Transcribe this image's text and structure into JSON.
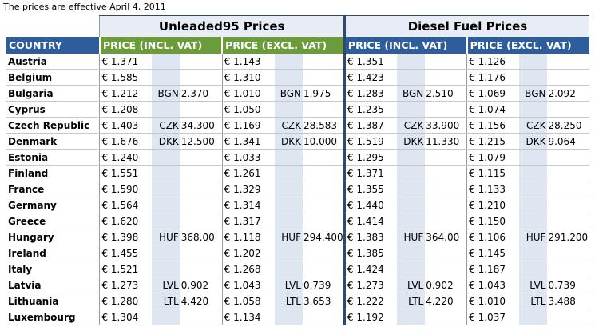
{
  "note": "The prices are effective April 4, 2011",
  "groups": {
    "unleaded": "Unleaded95 Prices",
    "diesel": "Diesel Fuel Prices"
  },
  "headers": {
    "country": "COUNTRY",
    "incl": "PRICE (INCL. VAT)",
    "excl": "PRICE (EXCL. VAT)"
  },
  "colors": {
    "country_header": "#2e5d9c",
    "unleaded_header": "#6c9c3a",
    "diesel_header": "#2e5d9c",
    "local_currency_band": "#dde6f1"
  },
  "rows": [
    {
      "country": "Austria",
      "u_incl": "€ 1.371",
      "u_incl_cur": "",
      "u_incl_loc": "",
      "u_excl": "€ 1.143",
      "u_excl_cur": "",
      "u_excl_loc": "",
      "d_incl": "€ 1.351",
      "d_incl_cur": "",
      "d_incl_loc": "",
      "d_excl": "€ 1.126",
      "d_excl_cur": "",
      "d_excl_loc": ""
    },
    {
      "country": "Belgium",
      "u_incl": "€ 1.585",
      "u_incl_cur": "",
      "u_incl_loc": "",
      "u_excl": "€ 1.310",
      "u_excl_cur": "",
      "u_excl_loc": "",
      "d_incl": "€ 1.423",
      "d_incl_cur": "",
      "d_incl_loc": "",
      "d_excl": "€ 1.176",
      "d_excl_cur": "",
      "d_excl_loc": ""
    },
    {
      "country": "Bulgaria",
      "u_incl": "€ 1.212",
      "u_incl_cur": "BGN",
      "u_incl_loc": "2.370",
      "u_excl": "€ 1.010",
      "u_excl_cur": "BGN",
      "u_excl_loc": "1.975",
      "d_incl": "€ 1.283",
      "d_incl_cur": "BGN",
      "d_incl_loc": "2.510",
      "d_excl": "€ 1.069",
      "d_excl_cur": "BGN",
      "d_excl_loc": "2.092"
    },
    {
      "country": "Cyprus",
      "u_incl": "€ 1.208",
      "u_incl_cur": "",
      "u_incl_loc": "",
      "u_excl": "€ 1.050",
      "u_excl_cur": "",
      "u_excl_loc": "",
      "d_incl": "€ 1.235",
      "d_incl_cur": "",
      "d_incl_loc": "",
      "d_excl": "€ 1.074",
      "d_excl_cur": "",
      "d_excl_loc": ""
    },
    {
      "country": "Czech Republic",
      "u_incl": "€ 1.403",
      "u_incl_cur": "CZK",
      "u_incl_loc": "34.300",
      "u_excl": "€ 1.169",
      "u_excl_cur": "CZK",
      "u_excl_loc": "28.583",
      "d_incl": "€ 1.387",
      "d_incl_cur": "CZK",
      "d_incl_loc": "33.900",
      "d_excl": "€ 1.156",
      "d_excl_cur": "CZK",
      "d_excl_loc": "28.250"
    },
    {
      "country": "Denmark",
      "u_incl": "€ 1.676",
      "u_incl_cur": "DKK",
      "u_incl_loc": "12.500",
      "u_excl": "€ 1.341",
      "u_excl_cur": "DKK",
      "u_excl_loc": "10.000",
      "d_incl": "€ 1.519",
      "d_incl_cur": "DKK",
      "d_incl_loc": "11.330",
      "d_excl": "€ 1.215",
      "d_excl_cur": "DKK",
      "d_excl_loc": "9.064"
    },
    {
      "country": "Estonia",
      "u_incl": "€ 1.240",
      "u_incl_cur": "",
      "u_incl_loc": "",
      "u_excl": "€ 1.033",
      "u_excl_cur": "",
      "u_excl_loc": "",
      "d_incl": "€ 1.295",
      "d_incl_cur": "",
      "d_incl_loc": "",
      "d_excl": "€ 1.079",
      "d_excl_cur": "",
      "d_excl_loc": ""
    },
    {
      "country": "Finland",
      "u_incl": "€ 1.551",
      "u_incl_cur": "",
      "u_incl_loc": "",
      "u_excl": "€ 1.261",
      "u_excl_cur": "",
      "u_excl_loc": "",
      "d_incl": "€ 1.371",
      "d_incl_cur": "",
      "d_incl_loc": "",
      "d_excl": "€ 1.115",
      "d_excl_cur": "",
      "d_excl_loc": ""
    },
    {
      "country": "France",
      "u_incl": "€ 1.590",
      "u_incl_cur": "",
      "u_incl_loc": "",
      "u_excl": "€ 1.329",
      "u_excl_cur": "",
      "u_excl_loc": "",
      "d_incl": "€ 1.355",
      "d_incl_cur": "",
      "d_incl_loc": "",
      "d_excl": "€ 1.133",
      "d_excl_cur": "",
      "d_excl_loc": ""
    },
    {
      "country": "Germany",
      "u_incl": "€ 1.564",
      "u_incl_cur": "",
      "u_incl_loc": "",
      "u_excl": "€ 1.314",
      "u_excl_cur": "",
      "u_excl_loc": "",
      "d_incl": "€ 1.440",
      "d_incl_cur": "",
      "d_incl_loc": "",
      "d_excl": "€ 1.210",
      "d_excl_cur": "",
      "d_excl_loc": ""
    },
    {
      "country": "Greece",
      "u_incl": "€ 1.620",
      "u_incl_cur": "",
      "u_incl_loc": "",
      "u_excl": "€ 1.317",
      "u_excl_cur": "",
      "u_excl_loc": "",
      "d_incl": "€ 1.414",
      "d_incl_cur": "",
      "d_incl_loc": "",
      "d_excl": "€ 1.150",
      "d_excl_cur": "",
      "d_excl_loc": ""
    },
    {
      "country": "Hungary",
      "u_incl": "€ 1.398",
      "u_incl_cur": "HUF",
      "u_incl_loc": "368.00",
      "u_excl": "€ 1.118",
      "u_excl_cur": "HUF",
      "u_excl_loc": "294.400",
      "d_incl": "€ 1.383",
      "d_incl_cur": "HUF",
      "d_incl_loc": "364.00",
      "d_excl": "€ 1.106",
      "d_excl_cur": "HUF",
      "d_excl_loc": "291.200"
    },
    {
      "country": "Ireland",
      "u_incl": "€ 1.455",
      "u_incl_cur": "",
      "u_incl_loc": "",
      "u_excl": "€ 1.202",
      "u_excl_cur": "",
      "u_excl_loc": "",
      "d_incl": "€ 1.385",
      "d_incl_cur": "",
      "d_incl_loc": "",
      "d_excl": "€ 1.145",
      "d_excl_cur": "",
      "d_excl_loc": ""
    },
    {
      "country": "Italy",
      "u_incl": "€ 1.521",
      "u_incl_cur": "",
      "u_incl_loc": "",
      "u_excl": "€ 1.268",
      "u_excl_cur": "",
      "u_excl_loc": "",
      "d_incl": "€ 1.424",
      "d_incl_cur": "",
      "d_incl_loc": "",
      "d_excl": "€ 1.187",
      "d_excl_cur": "",
      "d_excl_loc": ""
    },
    {
      "country": "Latvia",
      "u_incl": "€ 1.273",
      "u_incl_cur": "LVL",
      "u_incl_loc": "0.902",
      "u_excl": "€ 1.043",
      "u_excl_cur": "LVL",
      "u_excl_loc": "0.739",
      "d_incl": "€ 1.273",
      "d_incl_cur": "LVL",
      "d_incl_loc": "0.902",
      "d_excl": "€ 1.043",
      "d_excl_cur": "LVL",
      "d_excl_loc": "0.739"
    },
    {
      "country": "Lithuania",
      "u_incl": "€ 1.280",
      "u_incl_cur": "LTL",
      "u_incl_loc": "4.420",
      "u_excl": "€ 1.058",
      "u_excl_cur": "LTL",
      "u_excl_loc": "3.653",
      "d_incl": "€ 1.222",
      "d_incl_cur": "LTL",
      "d_incl_loc": "4.220",
      "d_excl": "€ 1.010",
      "d_excl_cur": "LTL",
      "d_excl_loc": "3.488"
    },
    {
      "country": "Luxembourg",
      "u_incl": "€ 1.304",
      "u_incl_cur": "",
      "u_incl_loc": "",
      "u_excl": "€ 1.134",
      "u_excl_cur": "",
      "u_excl_loc": "",
      "d_incl": "€ 1.192",
      "d_incl_cur": "",
      "d_incl_loc": "",
      "d_excl": "€ 1.037",
      "d_excl_cur": "",
      "d_excl_loc": ""
    }
  ]
}
